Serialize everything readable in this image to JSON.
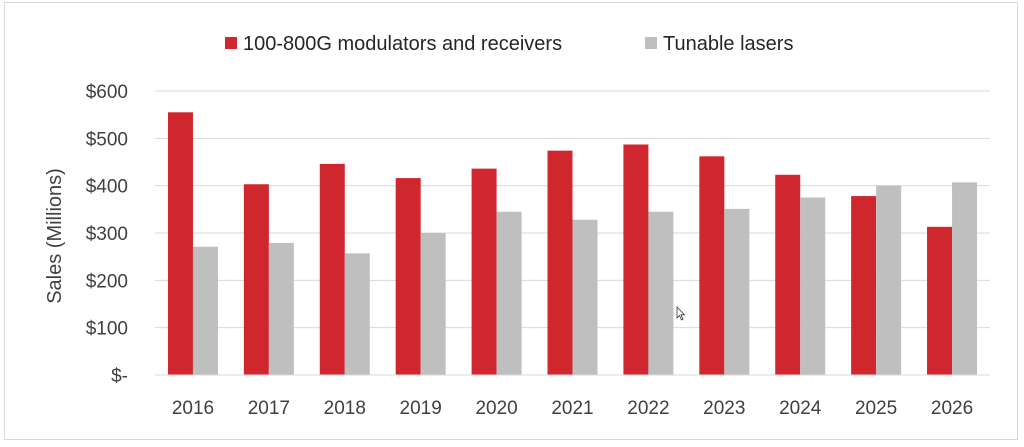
{
  "chart_data": {
    "type": "bar",
    "categories": [
      "2016",
      "2017",
      "2018",
      "2019",
      "2020",
      "2021",
      "2022",
      "2023",
      "2024",
      "2025",
      "2026"
    ],
    "series": [
      {
        "name": "100-800G modulators and receivers",
        "color": "#d0272f",
        "values": [
          555,
          403,
          446,
          416,
          436,
          474,
          487,
          462,
          423,
          378,
          313
        ]
      },
      {
        "name": "Tunable lasers",
        "color": "#bfbfbf",
        "values": [
          271,
          279,
          257,
          300,
          345,
          328,
          345,
          351,
          375,
          400,
          407
        ]
      }
    ],
    "title": "",
    "xlabel": "",
    "ylabel": "Sales (Millions)",
    "ylim": [
      0,
      600
    ],
    "yticks": [
      0,
      100,
      200,
      300,
      400,
      500,
      600
    ],
    "ytick_labels": [
      "$-",
      "$100",
      "$200",
      "$300",
      "$400",
      "$500",
      "$600"
    ],
    "grid": "horizontal",
    "legend_position": "top"
  }
}
